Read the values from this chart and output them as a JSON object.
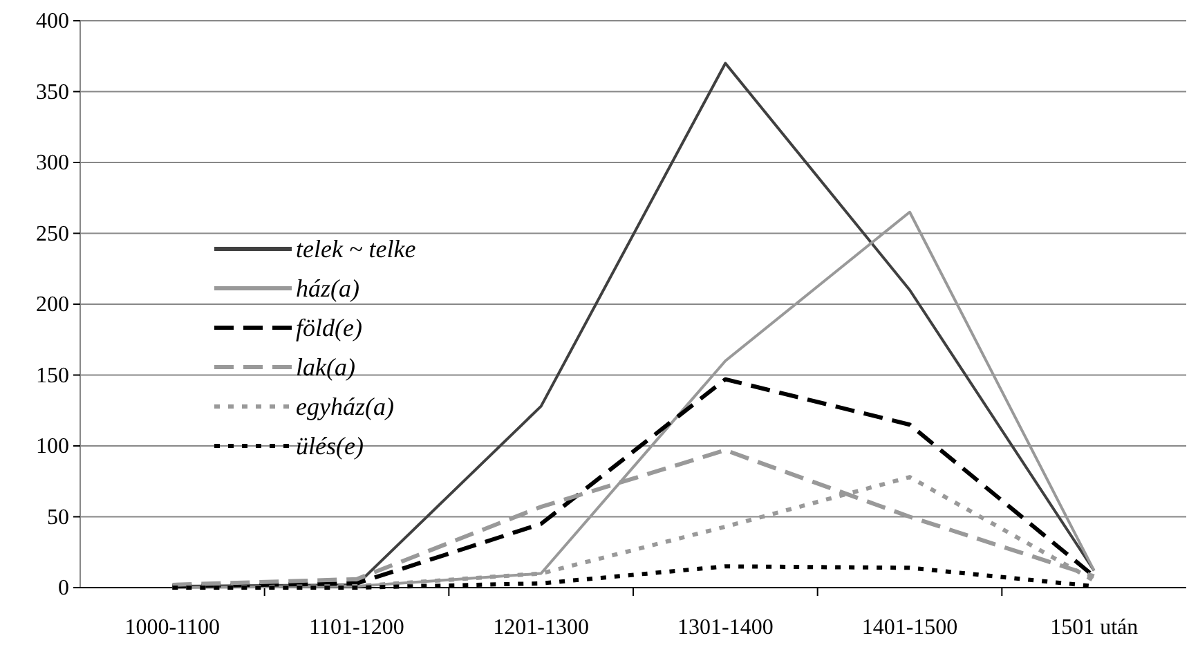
{
  "chart_data": {
    "type": "line",
    "categories": [
      "1000-1100",
      "1101-1200",
      "1201-1300",
      "1301-1400",
      "1401-1500",
      "1501 után"
    ],
    "series": [
      {
        "name": "telek ~ telke",
        "color": "#404040",
        "line_style": "solid",
        "values": [
          1,
          2,
          128,
          370,
          210,
          12
        ]
      },
      {
        "name": "ház(a)",
        "color": "#999999",
        "line_style": "solid",
        "values": [
          0,
          1,
          10,
          160,
          265,
          12
        ]
      },
      {
        "name": "föld(e)",
        "color": "#000000",
        "line_style": "dashed",
        "values": [
          1,
          3,
          45,
          147,
          115,
          8
        ]
      },
      {
        "name": "lak(a)",
        "color": "#999999",
        "line_style": "dashed",
        "values": [
          2,
          6,
          57,
          97,
          50,
          8
        ]
      },
      {
        "name": "egyház(a)",
        "color": "#999999",
        "line_style": "dotted",
        "values": [
          0,
          1,
          10,
          43,
          78,
          5
        ]
      },
      {
        "name": "ülés(e)",
        "color": "#000000",
        "line_style": "dotted",
        "values": [
          0,
          0,
          3,
          15,
          14,
          1
        ]
      }
    ],
    "ylim": [
      0,
      400
    ],
    "yticks": [
      0,
      50,
      100,
      150,
      200,
      250,
      300,
      350,
      400
    ],
    "grid": "y",
    "legend": "left",
    "marker": "none"
  }
}
